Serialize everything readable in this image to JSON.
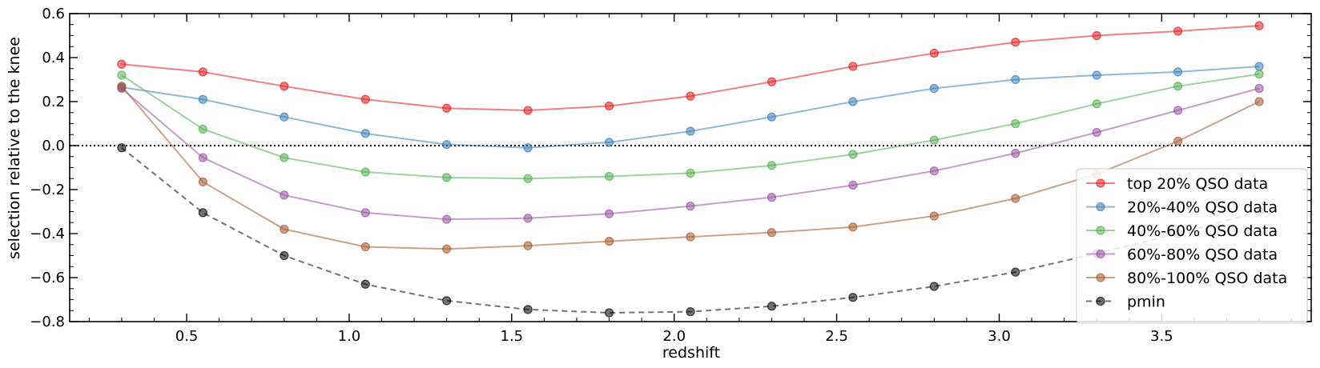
{
  "chart_data": {
    "type": "line",
    "title": "",
    "xlabel": "redshift",
    "ylabel": "selection relative to the knee",
    "xlim": [
      0.14,
      3.96
    ],
    "ylim": [
      -0.8,
      0.6
    ],
    "x": [
      0.3,
      0.55,
      0.8,
      1.05,
      1.3,
      1.55,
      1.8,
      2.05,
      2.3,
      2.55,
      2.8,
      3.05,
      3.3,
      3.55,
      3.8
    ],
    "x_ticks": [
      0.5,
      1.0,
      1.5,
      2.0,
      2.5,
      3.0,
      3.5
    ],
    "x_tick_labels": [
      "0.5",
      "1.0",
      "1.5",
      "2.0",
      "2.5",
      "3.0",
      "3.5"
    ],
    "y_ticks": [
      -0.8,
      -0.6,
      -0.4,
      -0.2,
      0.0,
      0.2,
      0.4,
      0.6
    ],
    "y_tick_labels": [
      "−0.8",
      "−0.6",
      "−0.4",
      "−0.2",
      "0.0",
      "0.2",
      "0.4",
      "0.6"
    ],
    "reference_line": {
      "y": 0.0,
      "style": "dotted",
      "color": "#000000"
    },
    "legend_position": "lower-right",
    "series": [
      {
        "name": "top 20% QSO data",
        "color": "#e41a1c",
        "dash": "solid",
        "values": [
          0.37,
          0.335,
          0.27,
          0.21,
          0.17,
          0.16,
          0.18,
          0.225,
          0.29,
          0.36,
          0.42,
          0.47,
          0.5,
          0.52,
          0.545
        ]
      },
      {
        "name": "20%-40% QSO data",
        "color": "#377eb8",
        "dash": "solid",
        "values": [
          0.265,
          0.21,
          0.13,
          0.055,
          0.005,
          -0.01,
          0.015,
          0.065,
          0.13,
          0.2,
          0.26,
          0.3,
          0.32,
          0.335,
          0.36
        ]
      },
      {
        "name": "40%-60% QSO data",
        "color": "#4daf4a",
        "dash": "solid",
        "values": [
          0.32,
          0.075,
          -0.055,
          -0.12,
          -0.145,
          -0.15,
          -0.14,
          -0.125,
          -0.09,
          -0.04,
          0.025,
          0.1,
          0.19,
          0.27,
          0.325
        ]
      },
      {
        "name": "60%-80% QSO data",
        "color": "#984ea3",
        "dash": "solid",
        "values": [
          0.26,
          -0.055,
          -0.225,
          -0.305,
          -0.335,
          -0.33,
          -0.31,
          -0.275,
          -0.235,
          -0.18,
          -0.115,
          -0.035,
          0.06,
          0.16,
          0.26
        ]
      },
      {
        "name": "80%-100% QSO data",
        "color": "#a65628",
        "dash": "solid",
        "values": [
          0.27,
          -0.165,
          -0.38,
          -0.46,
          -0.47,
          -0.455,
          -0.435,
          -0.415,
          -0.395,
          -0.37,
          -0.32,
          -0.24,
          -0.13,
          0.02,
          0.2
        ]
      },
      {
        "name": "pmin",
        "color": "#000000",
        "dash": "dashed",
        "values": [
          -0.01,
          -0.305,
          -0.5,
          -0.63,
          -0.705,
          -0.745,
          -0.76,
          -0.755,
          -0.73,
          -0.69,
          -0.64,
          -0.575,
          -0.49,
          -0.4,
          -0.3
        ]
      }
    ]
  }
}
